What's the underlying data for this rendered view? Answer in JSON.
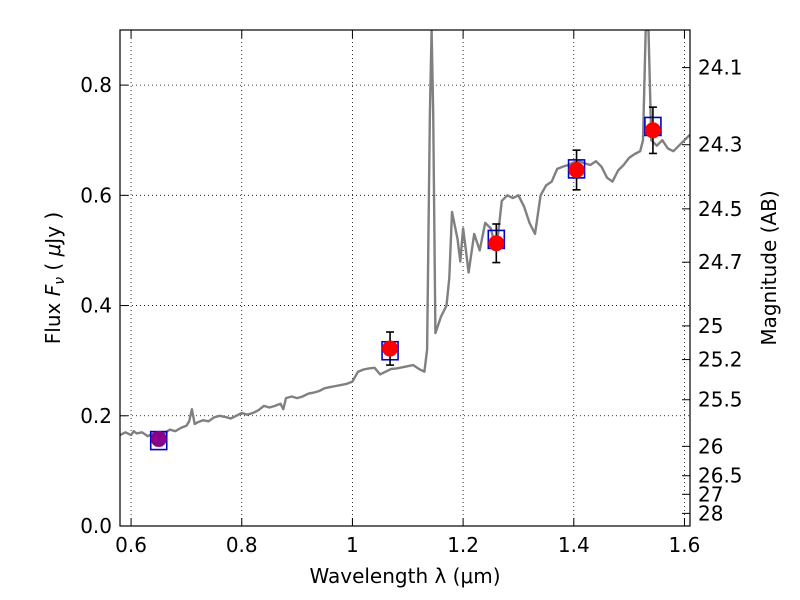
{
  "chart_data": {
    "type": "line",
    "xlabel": "Wavelength  λ (μm)",
    "ylabel": "Flux  F_ν  ( μJy )",
    "ylabel_parts": {
      "pre": "Flux  ",
      "sym": "F",
      "sub": "ν",
      "mid": "  ( ",
      "mu": "μ",
      "unit": "Jy )"
    },
    "y2label": "Magnitude (AB)",
    "xlim": [
      0.58,
      1.61
    ],
    "ylim": [
      0.0,
      0.9
    ],
    "x_ticks": [
      {
        "v": 0.6,
        "label": "0.6"
      },
      {
        "v": 0.8,
        "label": "0.8"
      },
      {
        "v": 1.0,
        "label": "1"
      },
      {
        "v": 1.2,
        "label": "1.2"
      },
      {
        "v": 1.4,
        "label": "1.4"
      },
      {
        "v": 1.6,
        "label": "1.6"
      }
    ],
    "y_ticks": [
      {
        "v": 0.0,
        "label": "0.0"
      },
      {
        "v": 0.2,
        "label": "0.2"
      },
      {
        "v": 0.4,
        "label": "0.4"
      },
      {
        "v": 0.6,
        "label": "0.6"
      },
      {
        "v": 0.8,
        "label": "0.8"
      }
    ],
    "mag_ticks": [
      {
        "v": 24.1,
        "label": "24.1"
      },
      {
        "v": 24.3,
        "label": "24.3"
      },
      {
        "v": 24.5,
        "label": "24.5"
      },
      {
        "v": 24.7,
        "label": "24.7"
      },
      {
        "v": 25.0,
        "label": "25"
      },
      {
        "v": 25.2,
        "label": "25.2"
      },
      {
        "v": 25.5,
        "label": "25.5"
      },
      {
        "v": 26.0,
        "label": "26"
      },
      {
        "v": 26.5,
        "label": "26.5"
      },
      {
        "v": 27.0,
        "label": "27"
      },
      {
        "v": 28.0,
        "label": "28"
      }
    ],
    "grid": true,
    "model_color": "#808080",
    "model_spectrum": [
      [
        0.58,
        0.165
      ],
      [
        0.59,
        0.17
      ],
      [
        0.6,
        0.165
      ],
      [
        0.605,
        0.172
      ],
      [
        0.61,
        0.168
      ],
      [
        0.62,
        0.17
      ],
      [
        0.63,
        0.163
      ],
      [
        0.64,
        0.168
      ],
      [
        0.65,
        0.17
      ],
      [
        0.66,
        0.168
      ],
      [
        0.67,
        0.175
      ],
      [
        0.68,
        0.172
      ],
      [
        0.69,
        0.178
      ],
      [
        0.7,
        0.182
      ],
      [
        0.705,
        0.19
      ],
      [
        0.71,
        0.212
      ],
      [
        0.715,
        0.185
      ],
      [
        0.72,
        0.188
      ],
      [
        0.73,
        0.192
      ],
      [
        0.74,
        0.19
      ],
      [
        0.75,
        0.197
      ],
      [
        0.76,
        0.2
      ],
      [
        0.77,
        0.198
      ],
      [
        0.78,
        0.195
      ],
      [
        0.79,
        0.2
      ],
      [
        0.8,
        0.205
      ],
      [
        0.81,
        0.202
      ],
      [
        0.82,
        0.205
      ],
      [
        0.83,
        0.21
      ],
      [
        0.84,
        0.218
      ],
      [
        0.85,
        0.215
      ],
      [
        0.86,
        0.218
      ],
      [
        0.87,
        0.222
      ],
      [
        0.875,
        0.212
      ],
      [
        0.88,
        0.232
      ],
      [
        0.89,
        0.235
      ],
      [
        0.9,
        0.232
      ],
      [
        0.91,
        0.235
      ],
      [
        0.92,
        0.24
      ],
      [
        0.93,
        0.242
      ],
      [
        0.94,
        0.245
      ],
      [
        0.95,
        0.25
      ],
      [
        0.96,
        0.252
      ],
      [
        0.97,
        0.254
      ],
      [
        0.98,
        0.256
      ],
      [
        0.99,
        0.258
      ],
      [
        1.0,
        0.262
      ],
      [
        1.01,
        0.28
      ],
      [
        1.02,
        0.284
      ],
      [
        1.03,
        0.286
      ],
      [
        1.04,
        0.287
      ],
      [
        1.05,
        0.275
      ],
      [
        1.06,
        0.28
      ],
      [
        1.07,
        0.285
      ],
      [
        1.08,
        0.286
      ],
      [
        1.09,
        0.288
      ],
      [
        1.1,
        0.29
      ],
      [
        1.11,
        0.292
      ],
      [
        1.12,
        0.285
      ],
      [
        1.13,
        0.28
      ],
      [
        1.135,
        0.32
      ],
      [
        1.14,
        0.75
      ],
      [
        1.143,
        0.9
      ],
      [
        1.146,
        0.75
      ],
      [
        1.15,
        0.35
      ],
      [
        1.16,
        0.38
      ],
      [
        1.17,
        0.4
      ],
      [
        1.175,
        0.45
      ],
      [
        1.18,
        0.57
      ],
      [
        1.19,
        0.52
      ],
      [
        1.195,
        0.48
      ],
      [
        1.2,
        0.54
      ],
      [
        1.205,
        0.5
      ],
      [
        1.21,
        0.46
      ],
      [
        1.22,
        0.53
      ],
      [
        1.23,
        0.5
      ],
      [
        1.24,
        0.55
      ],
      [
        1.25,
        0.54
      ],
      [
        1.26,
        0.5
      ],
      [
        1.27,
        0.59
      ],
      [
        1.28,
        0.6
      ],
      [
        1.29,
        0.595
      ],
      [
        1.3,
        0.6
      ],
      [
        1.31,
        0.58
      ],
      [
        1.32,
        0.55
      ],
      [
        1.33,
        0.53
      ],
      [
        1.34,
        0.6
      ],
      [
        1.35,
        0.618
      ],
      [
        1.36,
        0.625
      ],
      [
        1.37,
        0.648
      ],
      [
        1.38,
        0.652
      ],
      [
        1.39,
        0.655
      ],
      [
        1.4,
        0.66
      ],
      [
        1.41,
        0.662
      ],
      [
        1.42,
        0.658
      ],
      [
        1.43,
        0.655
      ],
      [
        1.44,
        0.662
      ],
      [
        1.45,
        0.652
      ],
      [
        1.46,
        0.632
      ],
      [
        1.47,
        0.625
      ],
      [
        1.48,
        0.645
      ],
      [
        1.49,
        0.655
      ],
      [
        1.5,
        0.668
      ],
      [
        1.51,
        0.675
      ],
      [
        1.52,
        0.68
      ],
      [
        1.525,
        0.7
      ],
      [
        1.53,
        0.9
      ],
      [
        1.535,
        0.9
      ],
      [
        1.54,
        0.7
      ],
      [
        1.55,
        0.69
      ],
      [
        1.56,
        0.7
      ],
      [
        1.57,
        0.685
      ],
      [
        1.58,
        0.68
      ],
      [
        1.59,
        0.69
      ],
      [
        1.6,
        0.7
      ],
      [
        1.61,
        0.71
      ]
    ],
    "observed": [
      {
        "x": 0.65,
        "y": 0.158,
        "err": 0.012,
        "color": "#8b008b"
      },
      {
        "x": 1.068,
        "y": 0.322,
        "err": 0.03,
        "color": "#ff0000"
      },
      {
        "x": 1.26,
        "y": 0.513,
        "err": 0.035,
        "color": "#ff0000"
      },
      {
        "x": 1.405,
        "y": 0.646,
        "err": 0.036,
        "color": "#ff0000"
      },
      {
        "x": 1.543,
        "y": 0.718,
        "err": 0.042,
        "color": "#ff0000"
      }
    ],
    "model_points": [
      {
        "x": 0.65,
        "y": 0.155
      },
      {
        "x": 1.068,
        "y": 0.318
      },
      {
        "x": 1.26,
        "y": 0.52
      },
      {
        "x": 1.405,
        "y": 0.648
      },
      {
        "x": 1.543,
        "y": 0.725
      }
    ],
    "model_point_color": "#0000cc",
    "errorbar_color": "#000000"
  }
}
